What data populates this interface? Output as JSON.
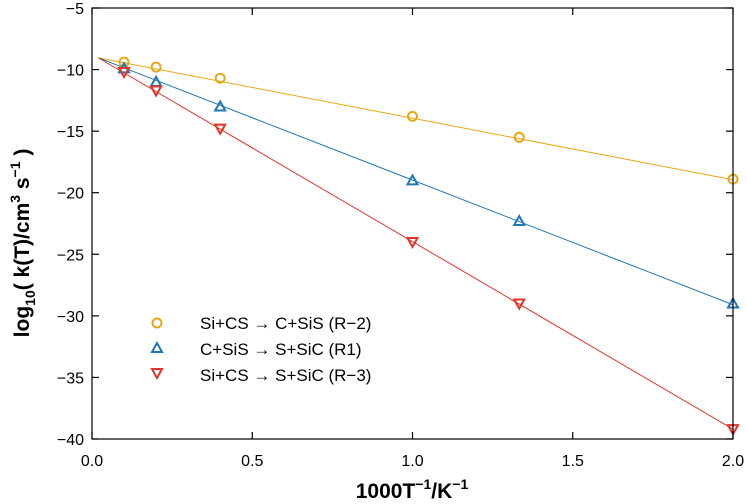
{
  "chart_data": {
    "type": "scatter",
    "xlabel": {
      "base": "1000T",
      "sup1": "−1",
      "mid": "/K",
      "sup2": "−1"
    },
    "ylabel": {
      "pre": "log",
      "sub": "10",
      "mid1": "( k(T)/cm",
      "sup1": "3",
      "mid2": " s",
      "sup2": "−1",
      "post": " )"
    },
    "xlim": [
      0.0,
      2.0
    ],
    "ylim": [
      -40,
      -5
    ],
    "x_ticks": [
      0.0,
      0.5,
      1.0,
      1.5,
      2.0
    ],
    "x_tick_labels": [
      "0.0",
      "0.5",
      "1.0",
      "1.5",
      "2.0"
    ],
    "y_ticks": [
      -40,
      -35,
      -30,
      -25,
      -20,
      -15,
      -10,
      -5
    ],
    "y_tick_labels": [
      "−40",
      "−35",
      "−30",
      "−25",
      "−20",
      "−15",
      "−10",
      "−5"
    ],
    "grid": false,
    "legend_position": "bottom-left",
    "series": [
      {
        "name": "Si+CS → C+SiS  (R−2)",
        "marker": "circle",
        "color": "#E6A817",
        "x": [
          0.1,
          0.2,
          0.4,
          1.0,
          1.333,
          2.0
        ],
        "y": [
          -9.4,
          -9.8,
          -10.7,
          -13.8,
          -15.5,
          -18.9
        ],
        "fit": {
          "x": [
            0.02,
            2.0
          ],
          "y": [
            -9.05,
            -18.95
          ]
        }
      },
      {
        "name": "C+SiS → S+SiC  (R1)",
        "marker": "triangle-up",
        "color": "#1F77B4",
        "x": [
          0.1,
          0.2,
          0.4,
          1.0,
          1.333,
          2.0
        ],
        "y": [
          -9.9,
          -11.0,
          -13.0,
          -19.0,
          -22.3,
          -29.0
        ],
        "fit": {
          "x": [
            0.02,
            2.0
          ],
          "y": [
            -9.05,
            -29.1
          ]
        }
      },
      {
        "name": "Si+CS → S+SiC  (R−3)",
        "marker": "triangle-down",
        "color": "#E0352B",
        "x": [
          0.1,
          0.2,
          0.4,
          1.0,
          1.333,
          2.0
        ],
        "y": [
          -10.2,
          -11.7,
          -14.8,
          -24.0,
          -29.0,
          -39.2
        ],
        "fit": {
          "x": [
            0.02,
            2.0
          ],
          "y": [
            -9.05,
            -39.2
          ]
        }
      }
    ]
  }
}
